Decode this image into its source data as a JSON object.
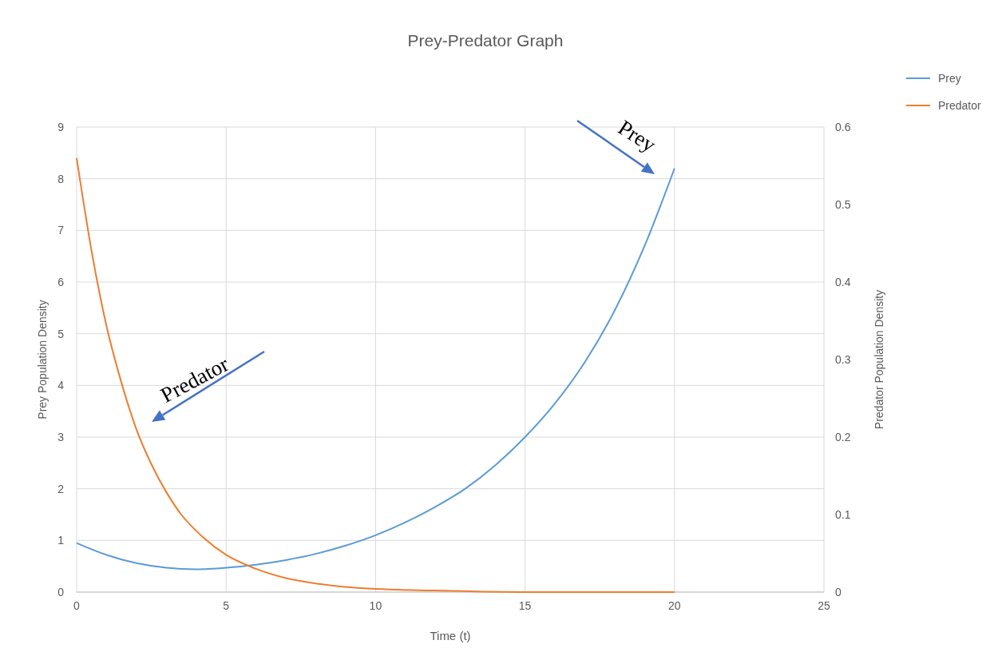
{
  "chart_data": {
    "type": "line",
    "title": "Prey-Predator Graph",
    "xlabel": "Time (t)",
    "ylabel": "Prey Population Density",
    "y2label": "Predator Population Density",
    "xlim": [
      0,
      25
    ],
    "xticks": [
      0,
      5,
      10,
      15,
      20,
      25
    ],
    "ylim": [
      0,
      9
    ],
    "yticks": [
      0,
      1,
      2,
      3,
      4,
      5,
      6,
      7,
      8,
      9
    ],
    "y2lim": [
      0,
      0.6
    ],
    "y2ticks": [
      0,
      0.1,
      0.2,
      0.3,
      0.4,
      0.5,
      0.6
    ],
    "grid": true,
    "legend": "top right",
    "marker": "none",
    "line_style": "solid",
    "series": [
      {
        "name": "Prey",
        "color": "#5b9bd5",
        "x": [
          0,
          1,
          2,
          3,
          4,
          5,
          6,
          7,
          8,
          9,
          10,
          11,
          12,
          13,
          14,
          15,
          16,
          17,
          18,
          19,
          20
        ],
        "values": [
          0.95,
          0.72,
          0.56,
          0.47,
          0.44,
          0.47,
          0.53,
          0.62,
          0.74,
          0.9,
          1.1,
          1.35,
          1.65,
          2.0,
          2.45,
          3.0,
          3.65,
          4.45,
          5.45,
          6.7,
          8.2
        ]
      },
      {
        "name": "Predator",
        "color": "#ed7d31",
        "axis": "y2",
        "x": [
          0,
          0.5,
          1,
          1.5,
          2,
          2.5,
          3,
          3.5,
          4,
          5,
          6,
          7,
          8,
          10,
          12,
          15,
          20
        ],
        "values": [
          0.56,
          0.44,
          0.343,
          0.27,
          0.21,
          0.165,
          0.129,
          0.1,
          0.079,
          0.048,
          0.03,
          0.018,
          0.011,
          0.004,
          0.002,
          0,
          0
        ]
      }
    ],
    "annotations": [
      "Predator",
      "Prey"
    ]
  }
}
